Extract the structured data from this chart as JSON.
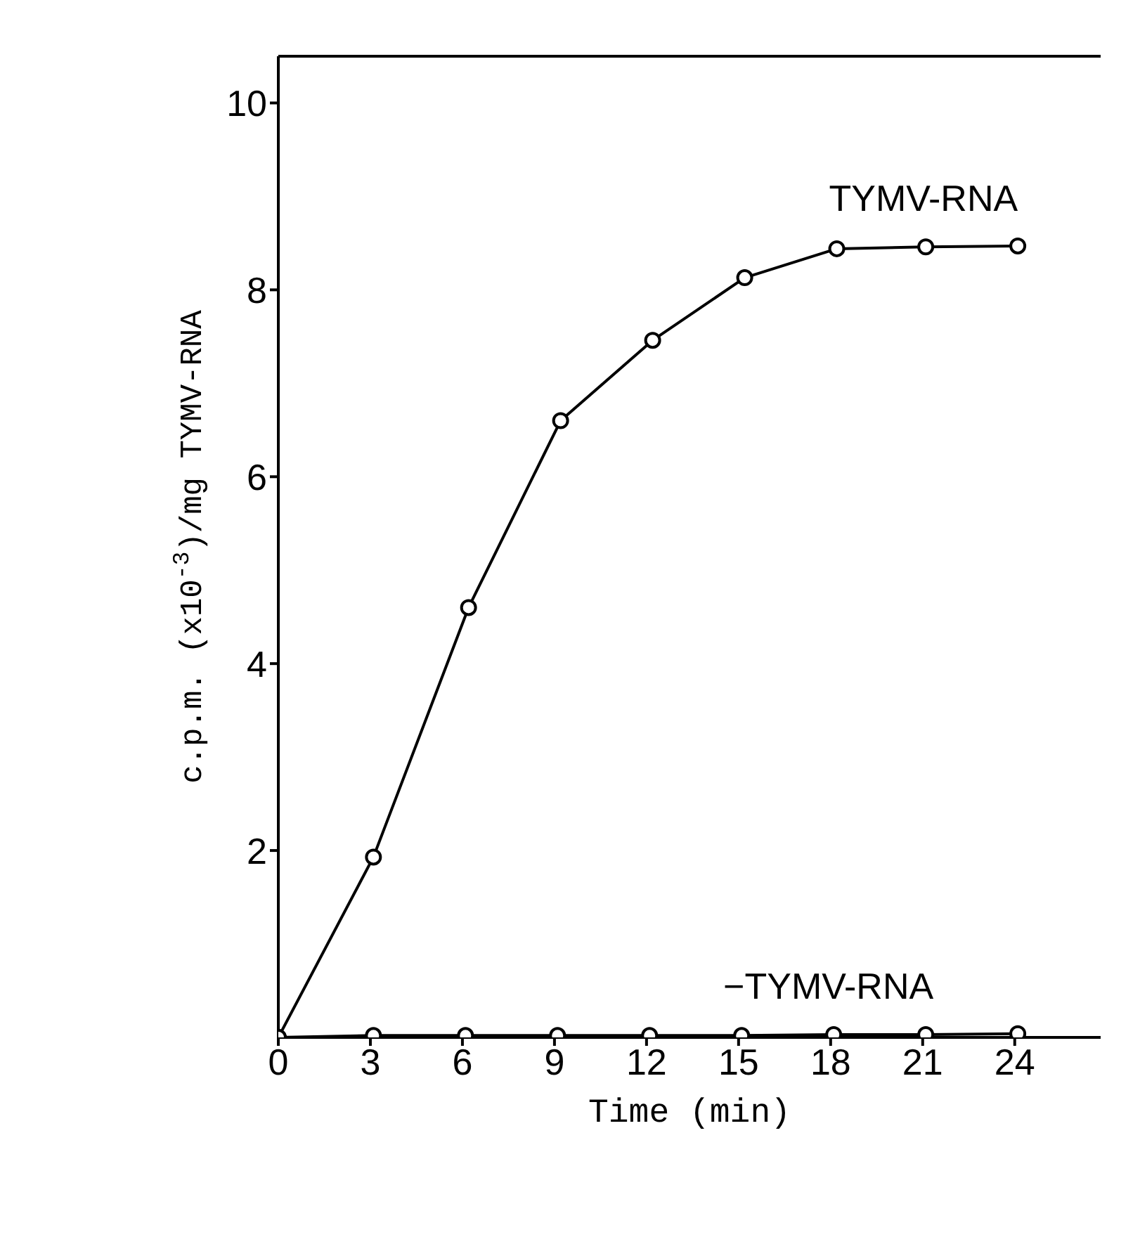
{
  "chart_data": {
    "type": "line",
    "xlabel": "Time (min)",
    "ylabel": "c.p.m. (x10$^{-3}$)/mg TYMV-RNA",
    "series": [
      {
        "name": "TYMV-RNA",
        "color": "#000000",
        "x": [
          0,
          3.1,
          6.2,
          9.2,
          12.2,
          15.2,
          18.2,
          21.1,
          24.1
        ],
        "values": [
          0,
          1.93,
          4.6,
          6.6,
          7.46,
          8.13,
          8.44,
          8.46,
          8.47
        ]
      },
      {
        "name": "−TYMV-RNA",
        "color": "#000000",
        "x": [
          0,
          3.1,
          6.1,
          9.1,
          12.1,
          15.1,
          18.1,
          21.1,
          24.1
        ],
        "values": [
          0,
          0.02,
          0.02,
          0.02,
          0.02,
          0.02,
          0.03,
          0.03,
          0.04
        ]
      }
    ],
    "xlim": [
      0,
      26.8
    ],
    "xticks": [
      0,
      3,
      6,
      9,
      12,
      15,
      18,
      21,
      24
    ],
    "ylim": [
      0,
      10.5
    ],
    "yticks": [
      2,
      4,
      6,
      8,
      10
    ],
    "marker": "circle",
    "line_style": "solid"
  }
}
